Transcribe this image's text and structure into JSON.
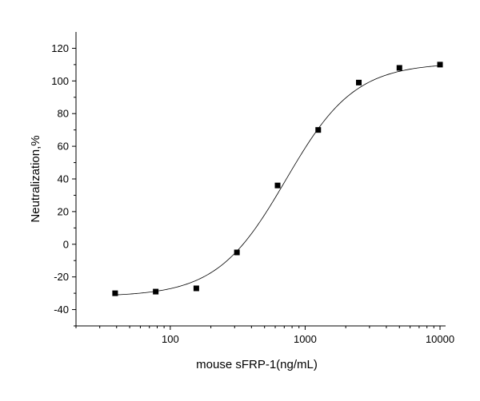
{
  "chart_data": {
    "type": "scatter",
    "title": "",
    "xlabel": "mouse sFRP-1(ng/mL)",
    "ylabel": "Neutralization,%",
    "x_scale": "log",
    "xlim": [
      20,
      11000
    ],
    "ylim": [
      -50,
      130
    ],
    "x_ticks": [
      100,
      1000,
      10000
    ],
    "x_tick_labels": [
      "100",
      "1000",
      "10000"
    ],
    "y_ticks": [
      -40,
      -20,
      0,
      20,
      40,
      60,
      80,
      100,
      120
    ],
    "y_tick_labels": [
      "-40",
      "-20",
      "0",
      "20",
      "40",
      "60",
      "80",
      "100",
      "120"
    ],
    "grid": false,
    "legend": "none",
    "marker_color": "#000000",
    "line_color": "#000000",
    "series": [
      {
        "points": [
          {
            "x": 39,
            "y": -30
          },
          {
            "x": 78,
            "y": -29
          },
          {
            "x": 156,
            "y": -27
          },
          {
            "x": 312,
            "y": -5
          },
          {
            "x": 625,
            "y": 36
          },
          {
            "x": 1250,
            "y": 70
          },
          {
            "x": 2500,
            "y": 99
          },
          {
            "x": 5000,
            "y": 108
          },
          {
            "x": 10000,
            "y": 110
          }
        ]
      }
    ],
    "fit": {
      "type": "sigmoid",
      "bottom": -32,
      "top": 111,
      "ec50": 720,
      "hill": 1.7,
      "x_range": [
        39,
        10000
      ]
    }
  }
}
